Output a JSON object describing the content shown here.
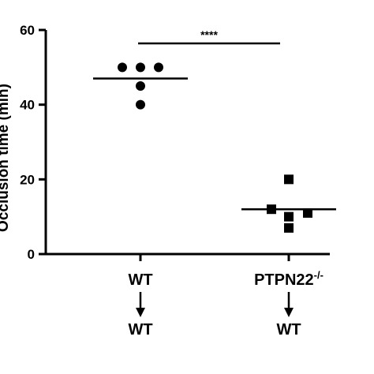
{
  "chart_data": {
    "type": "scatter",
    "ylabel": "Occlusion time (min)",
    "ylim": [
      0,
      60
    ],
    "yticks": [
      0,
      20,
      40,
      60
    ],
    "groups": [
      {
        "top_label": "WT",
        "bottom_label": "WT",
        "marker": "circle",
        "values": [
          50,
          50,
          50,
          45,
          40
        ],
        "mean": 47
      },
      {
        "top_label": "PTPN22",
        "top_label_superscript": "-/-",
        "bottom_label": "WT",
        "marker": "square",
        "values": [
          20,
          12,
          11,
          10,
          7
        ],
        "mean": 12
      }
    ],
    "significance": {
      "label": "****",
      "between": [
        0,
        1
      ]
    }
  }
}
